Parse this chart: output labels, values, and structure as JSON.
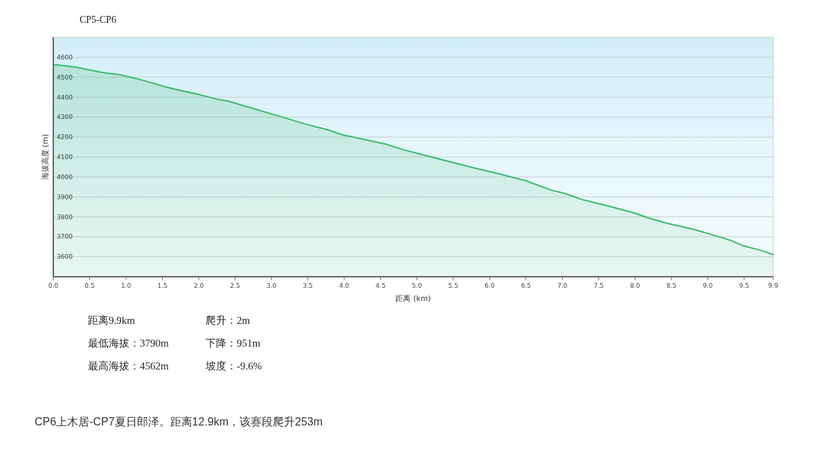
{
  "chart_data": {
    "type": "area",
    "title": "CP5-CP6",
    "xlabel": "距离 (km)",
    "ylabel": "海拔高度 (m)",
    "x": [
      0,
      0.05,
      0.31,
      0.47,
      0.7,
      0.9,
      1.08,
      1.33,
      1.52,
      1.77,
      1.99,
      2.25,
      2.41,
      2.76,
      3.17,
      3.46,
      3.77,
      3.96,
      4.25,
      4.57,
      4.82,
      5.01,
      5.36,
      5.74,
      6.16,
      6.5,
      6.85,
      7.04,
      7.26,
      7.39,
      7.65,
      7.81,
      8.0,
      8.19,
      8.44,
      8.66,
      8.85,
      9.11,
      9.3,
      9.49,
      9.71,
      9.9
    ],
    "series": [
      {
        "color": "#3cb96a",
        "values": [
          4560,
          4562,
          4551,
          4539,
          4522,
          4514,
          4499,
          4475,
          4454,
          4432,
          4415,
          4390,
          4380,
          4342,
          4298,
          4266,
          4237,
          4213,
          4190,
          4165,
          4136,
          4118,
          4085,
          4050,
          4013,
          3981,
          3934,
          3917,
          3888,
          3876,
          3853,
          3837,
          3818,
          3794,
          3768,
          3750,
          3733,
          3705,
          3684,
          3655,
          3634,
          3611
        ]
      }
    ],
    "xlim": [
      0,
      9.9
    ],
    "ylim": [
      3500,
      4700
    ],
    "xticks": [
      {
        "value": 0,
        "label": "0.0"
      },
      {
        "value": 0.5,
        "label": "0.5"
      },
      {
        "value": 1,
        "label": "1.0"
      },
      {
        "value": 1.5,
        "label": "1.5"
      },
      {
        "value": 2,
        "label": "2.0"
      },
      {
        "value": 2.5,
        "label": "2.5"
      },
      {
        "value": 3,
        "label": "3.0"
      },
      {
        "value": 3.5,
        "label": "3.5"
      },
      {
        "value": 4,
        "label": "4.0"
      },
      {
        "value": 4.5,
        "label": "4.5"
      },
      {
        "value": 5,
        "label": "5.0"
      },
      {
        "value": 5.5,
        "label": "5.5"
      },
      {
        "value": 6,
        "label": "6.0"
      },
      {
        "value": 6.5,
        "label": "6.5"
      },
      {
        "value": 7,
        "label": "7.0"
      },
      {
        "value": 7.5,
        "label": "7.5"
      },
      {
        "value": 8,
        "label": "8.0"
      },
      {
        "value": 8.5,
        "label": "8.5"
      },
      {
        "value": 9,
        "label": "9.0"
      },
      {
        "value": 9.5,
        "label": "9.5"
      },
      9.9
    ],
    "yticks": [
      3600,
      3700,
      3800,
      3900,
      4000,
      4100,
      4200,
      4300,
      4400,
      4500,
      4600
    ],
    "grid": "y",
    "annotations": [
      "距离9.9km",
      "爬升：2m",
      "最低海拔：3790m",
      "下降：951m",
      "最高海拔：4562m",
      "坡度：-9.6%",
      "CP6上木居-CP7夏日郎泽。距离12.9km，该赛段爬升253m"
    ]
  }
}
